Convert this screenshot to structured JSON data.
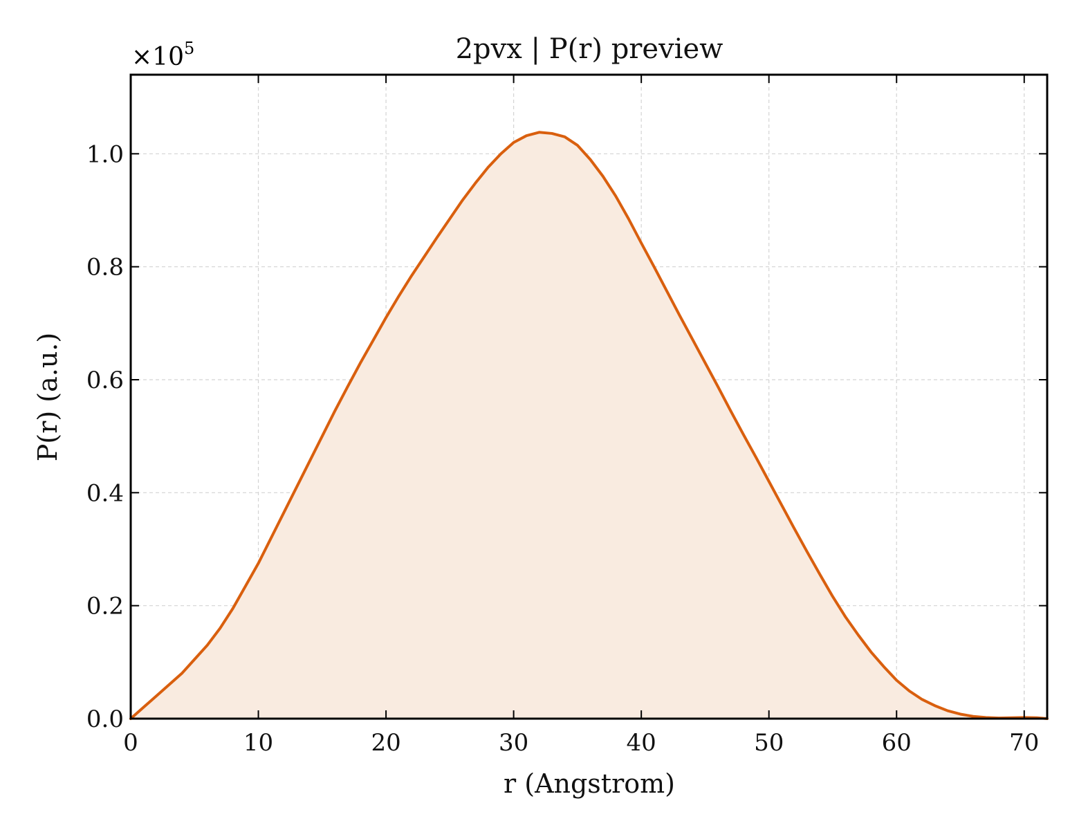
{
  "chart_data": {
    "type": "area",
    "title": "2pvx | P(r) preview",
    "xlabel": "r (Angstrom)",
    "ylabel": "P(r) (a.u.)",
    "y_multiplier": "×10",
    "y_multiplier_exponent": "5",
    "xlim": [
      0,
      71.8
    ],
    "ylim": [
      0,
      1.14
    ],
    "xticks": [
      0,
      10,
      20,
      30,
      40,
      50,
      60,
      70
    ],
    "xtick_labels": [
      "0",
      "10",
      "20",
      "30",
      "40",
      "50",
      "60",
      "70"
    ],
    "yticks": [
      0,
      0.2,
      0.4,
      0.6,
      0.8,
      1.0
    ],
    "ytick_labels": [
      "0.0",
      "0.2",
      "0.4",
      "0.6",
      "0.8",
      "1.0"
    ],
    "grid": true,
    "colors": {
      "line": "#d95f0e",
      "fill": "#f9ebe0"
    },
    "series": [
      {
        "x": [
          0,
          1,
          2,
          3,
          4,
          5,
          6,
          7,
          8,
          9,
          10,
          11,
          12,
          13,
          14,
          15,
          16,
          17,
          18,
          19,
          20,
          21,
          22,
          23,
          24,
          25,
          26,
          27,
          28,
          29,
          30,
          31,
          32,
          33,
          34,
          35,
          36,
          37,
          38,
          39,
          40,
          41,
          42,
          43,
          44,
          45,
          46,
          47,
          48,
          49,
          50,
          51,
          52,
          53,
          54,
          55,
          56,
          57,
          58,
          59,
          60,
          61,
          62,
          63,
          64,
          65,
          66,
          67,
          68,
          69,
          70,
          71,
          71.8
        ],
        "y": [
          0.0,
          0.02,
          0.04,
          0.06,
          0.08,
          0.105,
          0.13,
          0.16,
          0.195,
          0.235,
          0.275,
          0.32,
          0.365,
          0.41,
          0.455,
          0.5,
          0.545,
          0.588,
          0.63,
          0.67,
          0.71,
          0.748,
          0.784,
          0.818,
          0.852,
          0.885,
          0.918,
          0.948,
          0.976,
          1.0,
          1.02,
          1.032,
          1.038,
          1.036,
          1.03,
          1.015,
          0.99,
          0.96,
          0.925,
          0.885,
          0.842,
          0.8,
          0.757,
          0.714,
          0.672,
          0.63,
          0.588,
          0.545,
          0.503,
          0.462,
          0.42,
          0.378,
          0.336,
          0.295,
          0.255,
          0.216,
          0.18,
          0.148,
          0.118,
          0.092,
          0.068,
          0.049,
          0.034,
          0.023,
          0.014,
          0.008,
          0.004,
          0.002,
          0.001,
          0.0015,
          0.002,
          0.0015,
          0.0
        ]
      }
    ]
  }
}
